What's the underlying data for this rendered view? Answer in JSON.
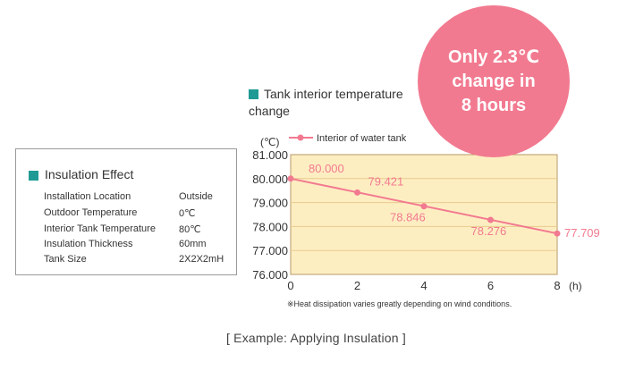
{
  "insulation_box": {
    "title": "Insulation Effect",
    "rows": [
      {
        "label": "Installation Location",
        "value": "Outside"
      },
      {
        "label": "Outdoor Temperature",
        "value": "0℃"
      },
      {
        "label": "Interior Tank Temperature",
        "value": "80℃"
      },
      {
        "label": "Insulation Thickness",
        "value": "60mm"
      },
      {
        "label": "Tank Size",
        "value": "2X2X2mH"
      }
    ]
  },
  "callout": {
    "line1": "Only 2.3℃",
    "line2": "change in",
    "line3": "8 hours"
  },
  "footnote": "※Heat dissipation varies greatly depending on wind conditions.",
  "caption": "[ Example: Applying Insulation ]",
  "colors": {
    "accent": "#1f9a95",
    "series": "#f27a90",
    "plot_bg": "#fdeec2",
    "bubble": "#f27a90"
  },
  "chart_data": {
    "type": "line",
    "title": "Tank interior temperature change",
    "xlabel": "(h)",
    "ylabel": "(℃)",
    "xlim": [
      0,
      8
    ],
    "ylim": [
      76,
      81
    ],
    "x_ticks": [
      "0",
      "2",
      "4",
      "6",
      "8"
    ],
    "y_ticks": [
      "76.000",
      "77.000",
      "78.000",
      "79.000",
      "80.000",
      "81.000"
    ],
    "legend": "top",
    "grid": "horizontal",
    "series": [
      {
        "name": "Interior of water tank",
        "x": [
          0,
          2,
          4,
          6,
          8
        ],
        "values": [
          80.0,
          79.421,
          78.846,
          78.276,
          77.709
        ],
        "labels": [
          "80.000",
          "79.421",
          "78.846",
          "78.276",
          "77.709"
        ]
      }
    ]
  }
}
